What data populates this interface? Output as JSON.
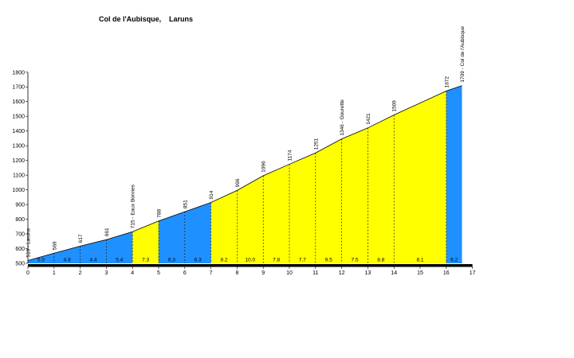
{
  "chart_data": {
    "type": "area",
    "title": "Col de l'Aubisque,",
    "subtitle": "Laruns",
    "xlabel": "",
    "ylabel": "",
    "xlim": [
      0,
      17
    ],
    "ylim": [
      500,
      1800
    ],
    "x_ticks": [
      0,
      1,
      2,
      3,
      4,
      5,
      6,
      7,
      8,
      9,
      10,
      11,
      12,
      13,
      14,
      15,
      16,
      17
    ],
    "y_ticks": [
      500,
      600,
      700,
      800,
      900,
      1000,
      1100,
      1200,
      1300,
      1400,
      1500,
      1600,
      1700,
      1800
    ],
    "grid": false,
    "points": [
      {
        "x": 0,
        "y": 519,
        "label": "519 - Laruns"
      },
      {
        "x": 1,
        "y": 569,
        "label": "569"
      },
      {
        "x": 2,
        "y": 617,
        "label": "617"
      },
      {
        "x": 3,
        "y": 661,
        "label": "661"
      },
      {
        "x": 4,
        "y": 715,
        "label": "715 - Eaux Bonnes"
      },
      {
        "x": 5,
        "y": 788,
        "label": "788"
      },
      {
        "x": 6,
        "y": 851,
        "label": "851"
      },
      {
        "x": 7,
        "y": 914,
        "label": "914"
      },
      {
        "x": 8,
        "y": 996,
        "label": "996"
      },
      {
        "x": 9,
        "y": 1096,
        "label": "1096"
      },
      {
        "x": 10,
        "y": 1174,
        "label": "1174"
      },
      {
        "x": 11,
        "y": 1251,
        "label": "1251"
      },
      {
        "x": 12,
        "y": 1346,
        "label": "1346 - Gourette"
      },
      {
        "x": 13,
        "y": 1421,
        "label": "1421"
      },
      {
        "x": 14,
        "y": 1509,
        "label": "1509"
      },
      {
        "x": 16,
        "y": 1672,
        "label": "1672"
      },
      {
        "x": 16.6,
        "y": 1709,
        "label": "1709 - Col de l'Aubisque"
      }
    ],
    "segments": [
      {
        "from": 0,
        "to": 1,
        "gradient": "5.0",
        "color": "#1e90ff"
      },
      {
        "from": 1,
        "to": 2,
        "gradient": "4.8",
        "color": "#1e90ff"
      },
      {
        "from": 2,
        "to": 3,
        "gradient": "4.4",
        "color": "#1e90ff"
      },
      {
        "from": 3,
        "to": 4,
        "gradient": "5.4",
        "color": "#1e90ff"
      },
      {
        "from": 4,
        "to": 5,
        "gradient": "7.3",
        "color": "#ffff00"
      },
      {
        "from": 5,
        "to": 6,
        "gradient": "6.3",
        "color": "#1e90ff"
      },
      {
        "from": 6,
        "to": 7,
        "gradient": "6.3",
        "color": "#1e90ff"
      },
      {
        "from": 7,
        "to": 8,
        "gradient": "8.2",
        "color": "#ffff00"
      },
      {
        "from": 8,
        "to": 9,
        "gradient": "10.0",
        "color": "#ffff00"
      },
      {
        "from": 9,
        "to": 10,
        "gradient": "7.8",
        "color": "#ffff00"
      },
      {
        "from": 10,
        "to": 11,
        "gradient": "7.7",
        "color": "#ffff00"
      },
      {
        "from": 11,
        "to": 12,
        "gradient": "9.5",
        "color": "#ffff00"
      },
      {
        "from": 12,
        "to": 13,
        "gradient": "7.5",
        "color": "#ffff00"
      },
      {
        "from": 13,
        "to": 14,
        "gradient": "8.8",
        "color": "#ffff00"
      },
      {
        "from": 14,
        "to": 16,
        "gradient": "8.1",
        "color": "#ffff00"
      },
      {
        "from": 16,
        "to": 16.6,
        "gradient": "6.2",
        "color": "#1e90ff"
      }
    ]
  }
}
